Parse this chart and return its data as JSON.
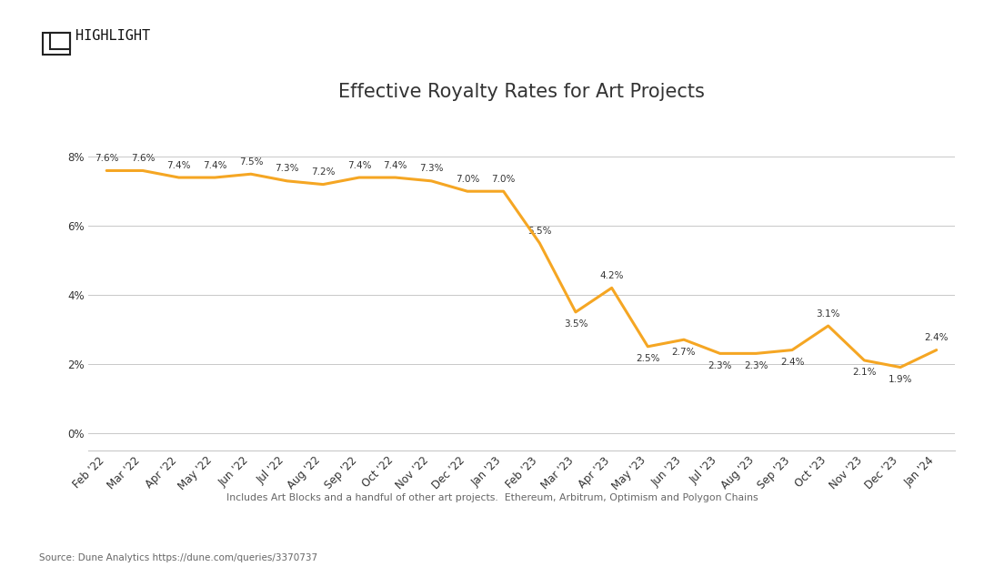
{
  "title": "Effective Royalty Rates for Art Projects",
  "x_labels": [
    "Feb '22",
    "Mar '22",
    "Apr '22",
    "May '22",
    "Jun '22",
    "Jul '22",
    "Aug '22",
    "Sep '22",
    "Oct '22",
    "Nov '22",
    "Dec '22",
    "Jan '23",
    "Feb '23",
    "Mar '23",
    "Apr '23",
    "May '23",
    "Jun '23",
    "Jul '23",
    "Aug '23",
    "Sep '23",
    "Oct '23",
    "Nov '23",
    "Dec '23",
    "Jan '24"
  ],
  "values": [
    7.6,
    7.6,
    7.4,
    7.4,
    7.5,
    7.3,
    7.2,
    7.4,
    7.4,
    7.3,
    7.0,
    7.0,
    5.5,
    3.5,
    4.2,
    2.5,
    2.7,
    2.3,
    2.3,
    2.4,
    3.1,
    2.1,
    1.9,
    2.4
  ],
  "line_color": "#F5A623",
  "background_color": "#FFFFFF",
  "grid_color": "#C8C8C8",
  "label_color": "#333333",
  "y_ticks": [
    0,
    2,
    4,
    6,
    8
  ],
  "y_tick_labels": [
    "0%",
    "2%",
    "4%",
    "6%",
    "8%"
  ],
  "ylim": [
    -0.5,
    9.2
  ],
  "subtitle": "Includes Art Blocks and a handful of other art projects.  Ethereum, Arbitrum, Optimism and Polygon Chains",
  "source": "Source: Dune Analytics https://dune.com/queries/3370737",
  "title_fontsize": 15,
  "label_fontsize": 8.5,
  "annotation_fontsize": 7.5,
  "subtitle_fontsize": 7.8,
  "source_fontsize": 7.5,
  "annot_above": [
    0,
    1,
    2,
    3,
    4,
    5,
    6,
    7,
    8,
    9,
    10,
    11,
    12,
    14,
    20,
    23
  ],
  "annot_below": [
    13,
    15,
    16,
    17,
    18,
    19,
    21,
    22
  ]
}
